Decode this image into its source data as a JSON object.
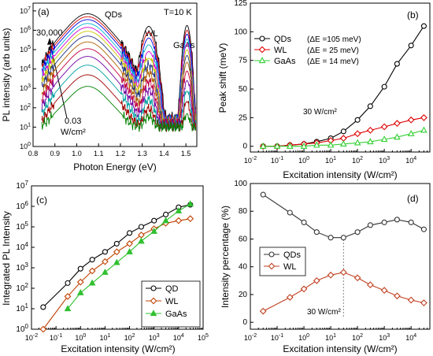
{
  "chart_data": [
    {
      "panel": "(a)",
      "type": "line",
      "xlabel": "Photon Energy (eV)",
      "ylabel": "PL intensity (arb units)",
      "xlim": [
        0.8,
        1.55
      ],
      "ylim_log": [
        0,
        7.4
      ],
      "x_ticks": [
        "0.8",
        "0.9",
        "1.0",
        "1.1",
        "1.2",
        "1.3",
        "1.4",
        "1.5"
      ],
      "y_ticks": [
        "10^0",
        "10^1",
        "10^2",
        "10^3",
        "10^4",
        "10^5",
        "10^6",
        "10^7"
      ],
      "annotations": [
        "QDs",
        "T=10 K",
        "WL",
        "GaAs",
        "30,000",
        "0.03",
        "W/cm²"
      ],
      "spectrum_shape": {
        "qd_peak_eV": 1.05,
        "qd_peak_width_eV": 0.085,
        "wl_peak_eV": 1.33,
        "wl_peak_width_eV": 0.022,
        "gaas_peak_eV": 1.505,
        "gaas_peak_width_eV": 0.012
      },
      "series": [
        {
          "color": "#000000",
          "qd_log": 6.85,
          "wl_log": 6.2,
          "gaas_log": 6.25,
          "noise_log": 1.5
        },
        {
          "color": "#d40000",
          "qd_log": 6.7,
          "wl_log": 5.9,
          "gaas_log": 6.0,
          "noise_log": 1.4
        },
        {
          "color": "#0000e0",
          "qd_log": 6.55,
          "wl_log": 5.6,
          "gaas_log": 5.8,
          "noise_log": 1.4
        },
        {
          "color": "#00b4d0",
          "qd_log": 6.35,
          "wl_log": 5.25,
          "gaas_log": 5.55,
          "noise_log": 1.35
        },
        {
          "color": "#d000d0",
          "qd_log": 6.15,
          "wl_log": 4.9,
          "gaas_log": 5.3,
          "noise_log": 1.3
        },
        {
          "color": "#c8c800",
          "qd_log": 5.95,
          "wl_log": 4.55,
          "gaas_log": 5.0,
          "noise_log": 1.3
        },
        {
          "color": "#203080",
          "qd_log": 5.7,
          "wl_log": 4.2,
          "gaas_log": 4.7,
          "noise_log": 1.25
        },
        {
          "color": "#b06000",
          "qd_log": 5.4,
          "wl_log": 3.8,
          "gaas_log": 4.35,
          "noise_log": 1.2
        },
        {
          "color": "#c00040",
          "qd_log": 5.05,
          "wl_log": 3.35,
          "gaas_log": 3.9,
          "noise_log": 1.2
        },
        {
          "color": "#7000a0",
          "qd_log": 4.65,
          "wl_log": 2.9,
          "gaas_log": 3.4,
          "noise_log": 1.15
        },
        {
          "color": "#00a0a0",
          "qd_log": 4.2,
          "wl_log": 2.4,
          "gaas_log": 2.85,
          "noise_log": 1.1
        },
        {
          "color": "#a00000",
          "qd_log": 3.7,
          "wl_log": 1.9,
          "gaas_log": 2.3,
          "noise_log": 1.05
        },
        {
          "color": "#008000",
          "qd_log": 3.1,
          "wl_log": 1.4,
          "gaas_log": 1.6,
          "noise_log": 1.0
        }
      ]
    },
    {
      "panel": "(b)",
      "type": "line",
      "xlabel": "Excitation intensity (W/cm²)",
      "ylabel": "Peak shift (meV)",
      "xscale": "log",
      "xlim_log": [
        -2,
        4.7
      ],
      "ylim": [
        -5,
        125
      ],
      "x_ticks": [
        "10^-2",
        "10^-1",
        "10^0",
        "10^1",
        "10^2",
        "10^3",
        "10^4"
      ],
      "y_ticks": [
        "0",
        "25",
        "50",
        "75",
        "100",
        "125"
      ],
      "legend_position": "top-left",
      "annotation": "30 W/cm²",
      "x": [
        0.03,
        0.1,
        0.3,
        1,
        3,
        10,
        30,
        100,
        300,
        1000,
        3000,
        10000,
        30000
      ],
      "series": [
        {
          "name": "QDs",
          "delta_label": "(ΔE =105 meV)",
          "color": "#000000",
          "marker": "circle",
          "values": [
            0,
            0,
            1,
            2,
            4,
            7,
            13,
            23,
            35,
            52,
            72,
            88,
            105
          ]
        },
        {
          "name": "WL",
          "delta_label": "(ΔE = 25 meV)",
          "color": "#e00000",
          "marker": "diamond",
          "values": [
            0,
            0,
            1,
            2,
            3,
            5,
            7,
            11,
            14,
            17,
            20,
            23,
            25
          ]
        },
        {
          "name": "GaAs",
          "delta_label": "(ΔE = 14 meV)",
          "color": "#30d030",
          "marker": "triangle",
          "values": [
            0,
            0,
            0,
            0,
            1,
            1,
            2,
            3,
            4,
            6,
            8,
            11,
            14
          ]
        }
      ]
    },
    {
      "panel": "(c)",
      "type": "line",
      "xlabel": "Excitation intensity (W/cm²)",
      "ylabel": "Integrated PL Intensity",
      "xscale": "log",
      "yscale": "log",
      "xlim_log": [
        -2,
        5
      ],
      "ylim_log": [
        0,
        7
      ],
      "x_ticks": [
        "10^-2",
        "10^-1",
        "10^0",
        "10^1",
        "10^2",
        "10^3",
        "10^4",
        "10^5"
      ],
      "y_ticks": [
        "10^0",
        "10^1",
        "10^2",
        "10^3",
        "10^4",
        "10^5",
        "10^6",
        "10^7"
      ],
      "legend_position": "bottom-right",
      "series": [
        {
          "name": "QD",
          "color": "#000000",
          "marker": "circle",
          "x": [
            0.03,
            0.3,
            1,
            3,
            10,
            30,
            100,
            300,
            1000,
            3000,
            10000,
            30000
          ],
          "values": [
            12,
            180,
            900,
            2500,
            6000,
            15000,
            50000,
            100000,
            200000,
            400000,
            900000,
            1200000
          ]
        },
        {
          "name": "WL",
          "color": "#c04000",
          "marker": "diamond",
          "x": [
            0.03,
            0.3,
            1,
            3,
            10,
            30,
            100,
            300,
            1000,
            3000,
            10000,
            30000
          ],
          "values": [
            1,
            40,
            200,
            700,
            2000,
            6000,
            15000,
            40000,
            80000,
            150000,
            200000,
            250000
          ]
        },
        {
          "name": "GaAs",
          "color": "#30c030",
          "marker": "triangle",
          "x": [
            0.3,
            1,
            3,
            10,
            30,
            100,
            300,
            1000,
            3000,
            10000,
            30000
          ],
          "values": [
            10,
            60,
            180,
            600,
            1800,
            6000,
            20000,
            60000,
            200000,
            600000,
            1300000
          ]
        }
      ]
    },
    {
      "panel": "(d)",
      "type": "line",
      "xlabel": "Excitation intensity (W/cm²)",
      "ylabel": "Intensity percentage (%)",
      "xscale": "log",
      "xlim_log": [
        -2,
        4.7
      ],
      "ylim": [
        -5,
        100
      ],
      "x_ticks": [
        "10^-2",
        "10^-1",
        "10^0",
        "10^1",
        "10^2",
        "10^3",
        "10^4"
      ],
      "y_ticks": [
        "0",
        "20",
        "40",
        "60",
        "80",
        "100"
      ],
      "legend_position": "middle-left",
      "annotation": "30 W/cm²",
      "x": [
        0.03,
        0.3,
        1,
        3,
        10,
        30,
        100,
        300,
        1000,
        3000,
        10000,
        30000
      ],
      "series": [
        {
          "name": "QDs",
          "color": "#333333",
          "marker": "circle",
          "values": [
            92,
            79,
            72,
            65,
            61,
            61,
            65,
            70,
            72,
            74,
            72,
            67
          ]
        },
        {
          "name": "WL",
          "color": "#c04020",
          "marker": "diamond",
          "values": [
            8,
            18,
            24,
            30,
            34,
            36,
            32,
            27,
            23,
            19,
            16,
            14
          ]
        }
      ]
    }
  ]
}
